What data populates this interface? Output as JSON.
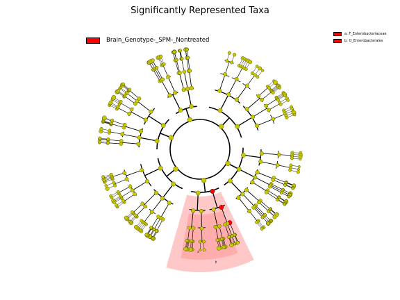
{
  "title": "Significantly Represented Taxa",
  "legend": {
    "class_label": "Brain_Genotype-_SPM-_Nontreated",
    "class_color": "#ff0000"
  },
  "clades": [
    {
      "letter": "a",
      "label": "a: F_Enterobacteriaceae",
      "color": "#ff0000"
    },
    {
      "letter": "b",
      "label": "b: O_Enterobacterales",
      "color": "#ff0000"
    }
  ],
  "colors": {
    "node_fill": "#c8c800",
    "node_stroke": "#5a5a00",
    "highlight_node": "#ff0000",
    "highlight_sector": "#ff9a9a"
  }
}
